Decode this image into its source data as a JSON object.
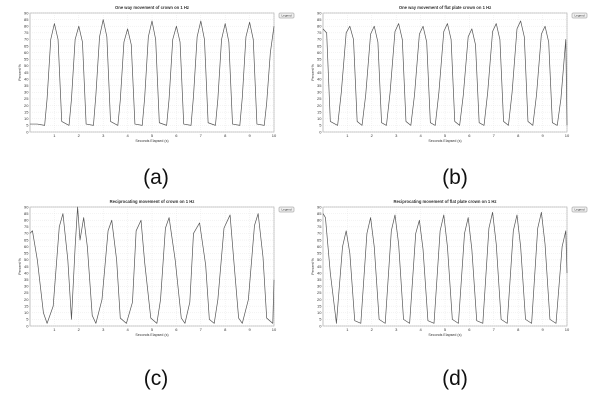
{
  "charts": [
    {
      "type": "line",
      "title": "One way movement of crown on 1 Hz",
      "xlabel": "Seconds Elapsed (s)",
      "ylabel": "Percent %",
      "legend": "Legend",
      "caption": "(a)",
      "xlim": [
        0,
        10
      ],
      "ylim": [
        0,
        90
      ],
      "x_ticks": [
        "1",
        "2",
        "3",
        "4",
        "5",
        "6",
        "7",
        "8",
        "9",
        "10"
      ],
      "y_ticks": [
        "0",
        "5",
        "10",
        "15",
        "20",
        "25",
        "30",
        "35",
        "40",
        "45",
        "50",
        "55",
        "60",
        "65",
        "70",
        "75",
        "80",
        "85",
        "90"
      ],
      "chart_data": {
        "type": "line",
        "x": [
          0,
          0.3,
          0.6,
          0.7,
          0.85,
          1.0,
          1.15,
          1.3,
          1.6,
          1.7,
          1.85,
          2.0,
          2.15,
          2.3,
          2.6,
          2.7,
          2.85,
          3.0,
          3.15,
          3.3,
          3.6,
          3.7,
          3.85,
          4.0,
          4.15,
          4.3,
          4.6,
          4.7,
          4.85,
          5.0,
          5.15,
          5.3,
          5.6,
          5.7,
          5.85,
          6.0,
          6.15,
          6.3,
          6.6,
          6.7,
          6.85,
          7.0,
          7.15,
          7.3,
          7.6,
          7.7,
          7.85,
          8.0,
          8.15,
          8.3,
          8.6,
          8.7,
          8.85,
          9.0,
          9.15,
          9.3,
          9.6,
          9.7,
          9.85,
          10.0
        ],
        "y": [
          6,
          6,
          5,
          25,
          70,
          82,
          70,
          8,
          5,
          25,
          70,
          80,
          68,
          6,
          5,
          28,
          72,
          85,
          72,
          8,
          5,
          24,
          68,
          78,
          66,
          6,
          5,
          26,
          72,
          84,
          70,
          7,
          5,
          25,
          70,
          80,
          68,
          6,
          5,
          27,
          72,
          84,
          70,
          7,
          5,
          25,
          70,
          82,
          68,
          6,
          5,
          26,
          72,
          83,
          70,
          6,
          5,
          22,
          60,
          80
        ]
      }
    },
    {
      "type": "line",
      "title": "One way movement of flat plate crown on 1 Hz",
      "xlabel": "Seconds Elapsed (s)",
      "ylabel": "Percent %",
      "legend": "Legend",
      "caption": "(b)",
      "xlim": [
        0,
        10
      ],
      "ylim": [
        0,
        90
      ],
      "x_ticks": [
        "1",
        "2",
        "3",
        "4",
        "5",
        "6",
        "7",
        "8",
        "9",
        "10"
      ],
      "y_ticks": [
        "0",
        "5",
        "10",
        "15",
        "20",
        "25",
        "30",
        "35",
        "40",
        "45",
        "50",
        "55",
        "60",
        "65",
        "70",
        "75",
        "80",
        "85",
        "90"
      ],
      "chart_data": {
        "type": "line",
        "x": [
          0,
          0.15,
          0.3,
          0.6,
          0.75,
          0.95,
          1.1,
          1.25,
          1.4,
          1.6,
          1.75,
          1.95,
          2.1,
          2.25,
          2.4,
          2.6,
          2.75,
          2.95,
          3.1,
          3.25,
          3.4,
          3.6,
          3.75,
          3.95,
          4.1,
          4.25,
          4.4,
          4.6,
          4.75,
          4.95,
          5.1,
          5.25,
          5.4,
          5.6,
          5.75,
          5.95,
          6.1,
          6.25,
          6.4,
          6.6,
          6.75,
          6.95,
          7.1,
          7.25,
          7.4,
          7.6,
          7.75,
          7.95,
          8.1,
          8.25,
          8.4,
          8.6,
          8.75,
          8.95,
          9.1,
          9.25,
          9.4,
          9.6,
          9.75,
          9.95,
          10.0
        ],
        "y": [
          78,
          75,
          8,
          5,
          30,
          75,
          80,
          70,
          8,
          5,
          28,
          74,
          80,
          68,
          7,
          5,
          30,
          76,
          82,
          70,
          8,
          5,
          28,
          74,
          80,
          68,
          7,
          5,
          30,
          76,
          82,
          70,
          8,
          5,
          28,
          72,
          78,
          66,
          7,
          5,
          30,
          76,
          82,
          70,
          8,
          5,
          30,
          78,
          84,
          72,
          8,
          5,
          28,
          74,
          80,
          68,
          7,
          5,
          25,
          70,
          5
        ]
      }
    },
    {
      "type": "line",
      "title": "Reciprocating movement of crown on 1 Hz",
      "xlabel": "Seconds Elapsed (s)",
      "ylabel": "Percent %",
      "legend": "Legend",
      "caption": "(c)",
      "xlim": [
        0,
        10
      ],
      "ylim": [
        0,
        90
      ],
      "x_ticks": [
        "1",
        "2",
        "3",
        "4",
        "5",
        "6",
        "7",
        "8",
        "9",
        "10"
      ],
      "y_ticks": [
        "0",
        "5",
        "10",
        "15",
        "20",
        "25",
        "30",
        "35",
        "40",
        "45",
        "50",
        "55",
        "60",
        "65",
        "70",
        "75",
        "80",
        "85",
        "90"
      ],
      "chart_data": {
        "type": "line",
        "x": [
          0,
          0.1,
          0.3,
          0.55,
          0.7,
          0.95,
          1.2,
          1.35,
          1.55,
          1.7,
          1.85,
          1.95,
          2.05,
          2.2,
          2.35,
          2.55,
          2.7,
          2.95,
          3.2,
          3.35,
          3.55,
          3.7,
          3.95,
          4.2,
          4.35,
          4.55,
          4.7,
          4.95,
          5.2,
          5.35,
          5.55,
          5.7,
          5.95,
          6.2,
          6.35,
          6.55,
          6.7,
          6.95,
          7.2,
          7.35,
          7.55,
          7.7,
          7.95,
          8.2,
          8.35,
          8.55,
          8.7,
          8.95,
          9.2,
          9.35,
          9.55,
          9.7,
          9.95,
          10.0
        ],
        "y": [
          70,
          72,
          50,
          10,
          2,
          15,
          75,
          85,
          50,
          5,
          60,
          90,
          65,
          82,
          60,
          8,
          2,
          20,
          72,
          80,
          50,
          6,
          2,
          18,
          72,
          80,
          48,
          6,
          2,
          20,
          74,
          82,
          50,
          6,
          2,
          18,
          70,
          78,
          46,
          5,
          2,
          20,
          74,
          84,
          50,
          6,
          2,
          20,
          76,
          85,
          52,
          6,
          2,
          35
        ]
      }
    },
    {
      "type": "line",
      "title": "Reciprocating movement of flat plate crown on 1 Hz",
      "xlabel": "Seconds Elapsed (s)",
      "ylabel": "Percent %",
      "legend": "Legend",
      "caption": "(d)",
      "xlim": [
        0,
        10
      ],
      "ylim": [
        0,
        90
      ],
      "x_ticks": [
        "1",
        "2",
        "3",
        "4",
        "5",
        "6",
        "7",
        "8",
        "9",
        "10"
      ],
      "y_ticks": [
        "0",
        "5",
        "10",
        "15",
        "20",
        "25",
        "30",
        "35",
        "40",
        "45",
        "50",
        "55",
        "60",
        "65",
        "70",
        "75",
        "80",
        "85",
        "90"
      ],
      "chart_data": {
        "type": "line",
        "x": [
          0,
          0.1,
          0.3,
          0.55,
          0.8,
          0.95,
          1.1,
          1.3,
          1.55,
          1.8,
          1.95,
          2.1,
          2.3,
          2.55,
          2.8,
          2.95,
          3.1,
          3.3,
          3.55,
          3.8,
          3.95,
          4.1,
          4.3,
          4.55,
          4.8,
          4.95,
          5.1,
          5.3,
          5.55,
          5.8,
          5.95,
          6.1,
          6.3,
          6.55,
          6.8,
          6.95,
          7.1,
          7.3,
          7.55,
          7.8,
          7.95,
          8.1,
          8.3,
          8.55,
          8.8,
          8.95,
          9.1,
          9.3,
          9.55,
          9.8,
          9.95,
          10.0
        ],
        "y": [
          85,
          82,
          40,
          2,
          60,
          72,
          55,
          4,
          2,
          70,
          82,
          60,
          5,
          2,
          72,
          84,
          62,
          5,
          2,
          70,
          80,
          58,
          4,
          2,
          72,
          84,
          60,
          5,
          2,
          70,
          82,
          58,
          4,
          2,
          74,
          86,
          62,
          5,
          2,
          72,
          84,
          60,
          5,
          2,
          74,
          86,
          62,
          5,
          2,
          60,
          72,
          40
        ]
      }
    }
  ]
}
